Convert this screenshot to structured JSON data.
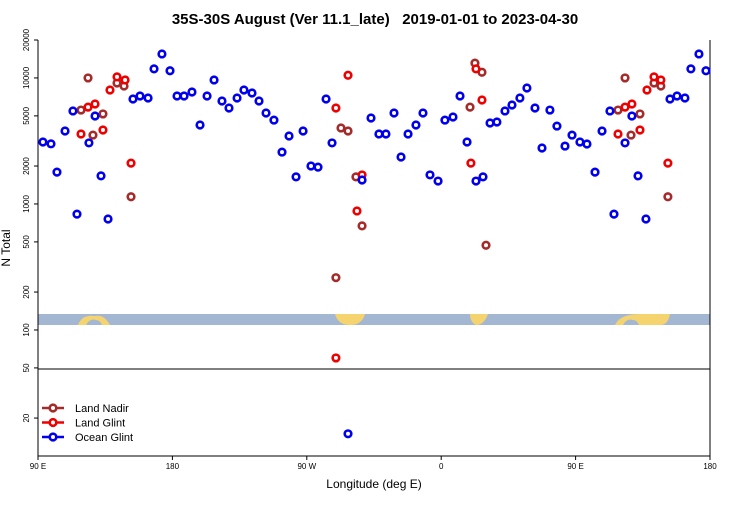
{
  "chart_data": {
    "type": "scatter",
    "title": "35S-30S August (Ver 11.1_late)   2019-01-01 to 2023-04-30",
    "xlabel": "Longitude (deg E)",
    "ylabel": "N Total",
    "xlim": [
      90,
      540
    ],
    "xticks": [
      {
        "value": 90,
        "label": "90 E"
      },
      {
        "value": 180,
        "label": "180"
      },
      {
        "value": 270,
        "label": "90 W"
      },
      {
        "value": 360,
        "label": "0"
      },
      {
        "value": 450,
        "label": "90 E"
      },
      {
        "value": 540,
        "label": "180"
      }
    ],
    "ylim": [
      10,
      20000
    ],
    "ylog": true,
    "yticks": [
      20,
      50,
      100,
      200,
      500,
      1000,
      2000,
      5000,
      10000,
      20000
    ],
    "legend": "bottom-left",
    "series": [
      {
        "name": "Land Nadir",
        "color": "#a52a2a",
        "x": [
          118.8,
          123.5,
          126.8,
          133.5,
          142.9,
          147.6,
          152.3,
          289.5,
          292.9,
          297.6,
          302.9,
          307,
          379.3,
          382.6,
          387.3,
          390,
          478.4,
          483.1,
          487.1,
          493.1,
          502.5,
          507.1,
          511.8
        ],
        "values": [
          5560,
          10000,
          3520,
          5180,
          9120,
          8630,
          1140,
          260,
          4010,
          3790,
          1640,
          670,
          5870,
          13100,
          11100,
          470,
          5560,
          10000,
          3520,
          5180,
          9120,
          8630,
          1140
        ]
      },
      {
        "name": "Land Glint",
        "color": "#ee0000",
        "x": [
          118.8,
          123.5,
          128.2,
          133.5,
          138.2,
          142.9,
          148.3,
          152.3,
          289.5,
          297.6,
          303.6,
          307,
          289.5,
          379.9,
          383.3,
          387.3,
          478.4,
          483.1,
          487.7,
          493.1,
          497.8,
          502.5,
          507.1,
          511.8
        ],
        "values": [
          3590,
          5870,
          6210,
          3860,
          8020,
          10200,
          9640,
          2110,
          5770,
          10500,
          880,
          1700,
          60,
          2110,
          11800,
          6680,
          3590,
          5870,
          6210,
          3860,
          8020,
          10200,
          9640,
          2110
        ]
      },
      {
        "name": "Ocean Glint",
        "color": "#0000ee",
        "x": [
          93.3,
          98.7,
          102.7,
          108.1,
          116.1,
          113.4,
          124.1,
          128.2,
          132.2,
          136.9,
          153.6,
          158.3,
          163.7,
          167.7,
          173,
          178.4,
          183.1,
          187.8,
          193.1,
          198.5,
          203.2,
          207.9,
          213.2,
          217.9,
          223.3,
          227.9,
          233.3,
          238,
          242.7,
          248,
          253.4,
          258.1,
          262.8,
          267.5,
          272.8,
          277.5,
          282.9,
          286.9,
          307,
          313,
          318.3,
          323,
          328.4,
          333.1,
          337.8,
          343.1,
          347.8,
          352.5,
          357.9,
          362.5,
          367.9,
          372.6,
          377.3,
          383.3,
          388,
          392.7,
          397.3,
          402.7,
          407.4,
          412.7,
          417.4,
          422.8,
          427.5,
          432.8,
          437.5,
          442.9,
          447.6,
          452.9,
          457.6,
          463,
          467.7,
          475.7,
          473,
          483.1,
          487.7,
          491.8,
          497.1,
          513.2,
          517.9,
          523.2,
          527.2,
          532.6,
          537.3,
          297.6
        ],
        "values": [
          3100,
          3000,
          1790,
          3790,
          830,
          5470,
          3050,
          4990,
          1670,
          760,
          6810,
          7190,
          6930,
          11800,
          15500,
          11400,
          7190,
          7190,
          7730,
          4230,
          7190,
          9640,
          6560,
          5770,
          6930,
          8020,
          7590,
          6560,
          5270,
          4630,
          2580,
          3460,
          1640,
          3790,
          2000,
          1960,
          6810,
          3050,
          1550,
          4810,
          3590,
          3590,
          5270,
          2360,
          3590,
          4230,
          5270,
          1700,
          1520,
          4630,
          4900,
          7190,
          3100,
          1520,
          1640,
          4390,
          4470,
          5470,
          6100,
          6930,
          8320,
          5770,
          2780,
          5560,
          4150,
          2880,
          3520,
          3100,
          2990,
          1790,
          3790,
          830,
          5470,
          3050,
          4990,
          1670,
          760,
          6810,
          7190,
          6930,
          11800,
          15500,
          11400,
          15
        ]
      }
    ]
  }
}
